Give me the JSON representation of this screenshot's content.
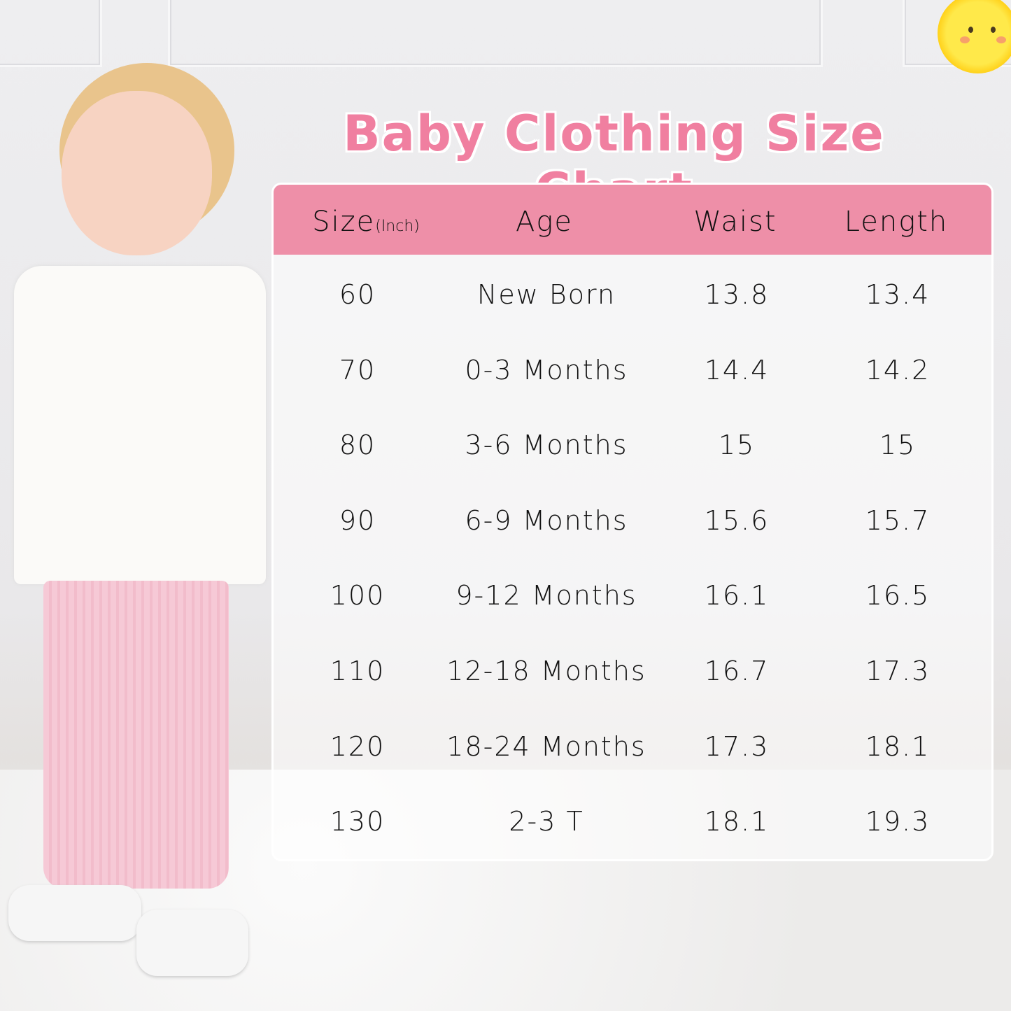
{
  "title": "Baby Clothing Size Chart",
  "colors": {
    "accent": "#f07fa0",
    "header": "#ee8fa8",
    "sun": "#ffe94a"
  },
  "table": {
    "headers": [
      {
        "label": "Size",
        "unit": "(Inch)"
      },
      {
        "label": "Age"
      },
      {
        "label": "Waist"
      },
      {
        "label": "Length"
      }
    ],
    "rows": [
      [
        "60",
        "New Born",
        "13.8",
        "13.4"
      ],
      [
        "70",
        "0-3 Months",
        "14.4",
        "14.2"
      ],
      [
        "80",
        "3-6 Months",
        "15",
        "15"
      ],
      [
        "90",
        "6-9 Months",
        "15.6",
        "15.7"
      ],
      [
        "100",
        "9-12 Months",
        "16.1",
        "16.5"
      ],
      [
        "110",
        "12-18 Months",
        "16.7",
        "17.3"
      ],
      [
        "120",
        "18-24 Months",
        "17.3",
        "18.1"
      ],
      [
        "130",
        "2-3 T",
        "18.1",
        "19.3"
      ]
    ]
  },
  "icons": {
    "sun": "sun-icon"
  }
}
